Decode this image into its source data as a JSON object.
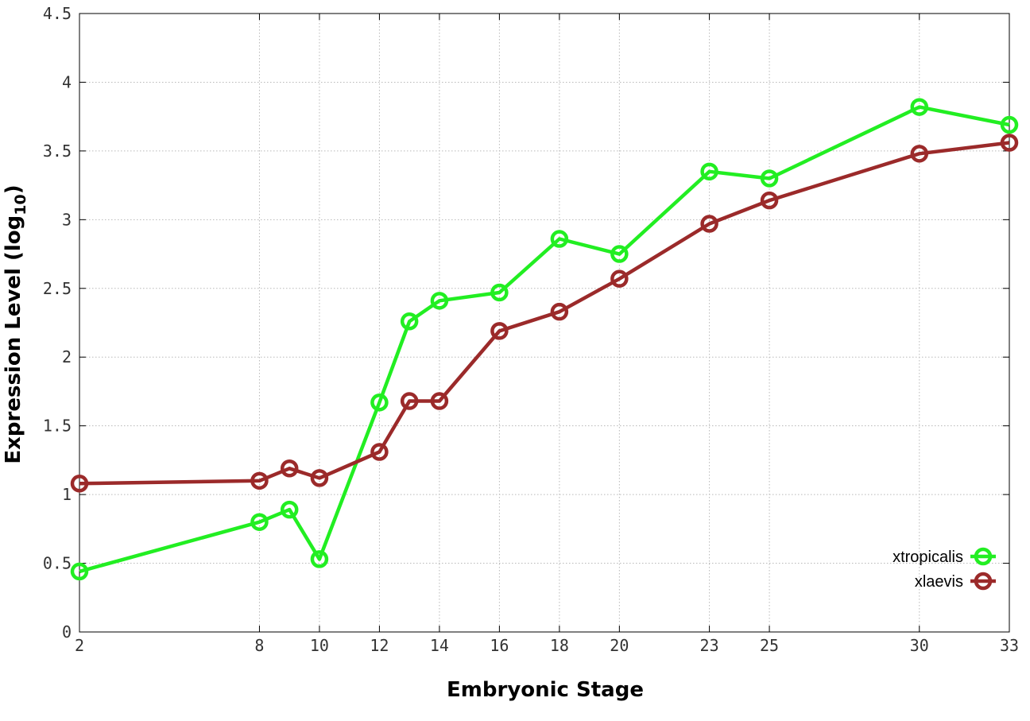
{
  "chart_data": {
    "type": "line",
    "xlabel": "Embryonic Stage",
    "ylabel_main": "Expression Level (log",
    "ylabel_sub": "10",
    "ylabel_close": ")",
    "xlim": [
      2,
      33
    ],
    "ylim": [
      0,
      4.5
    ],
    "xticks": [
      2,
      8,
      10,
      12,
      14,
      16,
      18,
      20,
      23,
      25,
      30,
      33
    ],
    "yticks": [
      0,
      0.5,
      1,
      1.5,
      2,
      2.5,
      3,
      3.5,
      4,
      4.5
    ],
    "grid": true,
    "legend_position": "bottom-right",
    "series": [
      {
        "name": "xtropicalis",
        "color": "#22ee22",
        "x": [
          2,
          8,
          9,
          10,
          12,
          13,
          14,
          16,
          18,
          20,
          23,
          25,
          30,
          33
        ],
        "y": [
          0.44,
          0.8,
          0.89,
          0.53,
          1.67,
          2.26,
          2.41,
          2.47,
          2.86,
          2.75,
          3.35,
          3.3,
          3.82,
          3.69
        ]
      },
      {
        "name": "xlaevis",
        "color": "#9b2a2a",
        "x": [
          2,
          8,
          9,
          10,
          12,
          13,
          14,
          16,
          18,
          20,
          23,
          25,
          30,
          33
        ],
        "y": [
          1.08,
          1.1,
          1.19,
          1.12,
          1.31,
          1.68,
          1.68,
          2.19,
          2.33,
          2.57,
          2.97,
          3.14,
          3.48,
          3.56
        ]
      }
    ]
  }
}
